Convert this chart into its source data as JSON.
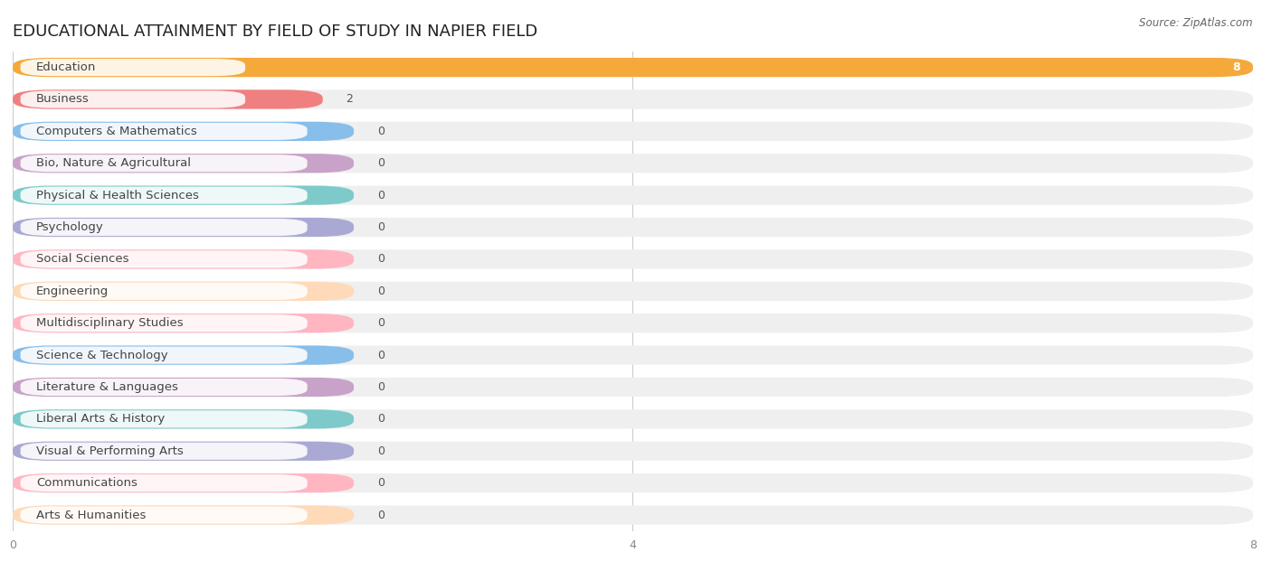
{
  "title": "EDUCATIONAL ATTAINMENT BY FIELD OF STUDY IN NAPIER FIELD",
  "source": "Source: ZipAtlas.com",
  "categories": [
    "Education",
    "Business",
    "Computers & Mathematics",
    "Bio, Nature & Agricultural",
    "Physical & Health Sciences",
    "Psychology",
    "Social Sciences",
    "Engineering",
    "Multidisciplinary Studies",
    "Science & Technology",
    "Literature & Languages",
    "Liberal Arts & History",
    "Visual & Performing Arts",
    "Communications",
    "Arts & Humanities"
  ],
  "values": [
    8,
    2,
    0,
    0,
    0,
    0,
    0,
    0,
    0,
    0,
    0,
    0,
    0,
    0,
    0
  ],
  "bar_colors": [
    "#F5A93B",
    "#F08080",
    "#87BEEA",
    "#C8A2C8",
    "#7ECACA",
    "#A9A9D4",
    "#FFB6C1",
    "#FFDAB9",
    "#FFB6C1",
    "#87BEEA",
    "#C8A2C8",
    "#7ECACA",
    "#A9A9D4",
    "#FFB6C1",
    "#FFDAB9"
  ],
  "xlim": [
    0,
    8
  ],
  "xticks": [
    0,
    4,
    8
  ],
  "background_color": "#ffffff",
  "bar_bg_color": "#efefef",
  "title_fontsize": 13,
  "label_fontsize": 9.5,
  "value_fontsize": 9,
  "zero_bar_width": 2.2
}
